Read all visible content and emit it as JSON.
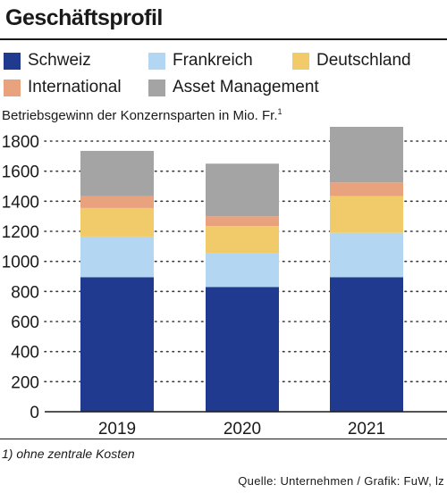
{
  "title": "Geschäftsprofil",
  "ylabel_text": "Betriebsgewinn der Konzernsparten in Mio. Fr.",
  "ylabel_sup": "1",
  "footnote": "1) ohne zentrale Kosten",
  "source": "Quelle: Unternehmen / Grafik: FuW, lz",
  "legend": [
    {
      "label": "Schweiz",
      "color": "#1f3a8f"
    },
    {
      "label": "Frankreich",
      "color": "#b3d7f2"
    },
    {
      "label": "Deutschland",
      "color": "#f1cb69"
    },
    {
      "label": "International",
      "color": "#e8a27d"
    },
    {
      "label": "Asset Management",
      "color": "#a4a4a4"
    }
  ],
  "chart_data": {
    "type": "bar",
    "stacked": true,
    "categories": [
      "2019",
      "2020",
      "2021"
    ],
    "ylim": [
      0,
      1800
    ],
    "yticks": [
      0,
      200,
      400,
      600,
      800,
      1000,
      1200,
      1400,
      1600,
      1800
    ],
    "grid": "dotted horizontal",
    "series": [
      {
        "name": "Schweiz",
        "color": "#1f3a8f",
        "values": [
          895,
          830,
          895
        ]
      },
      {
        "name": "Frankreich",
        "color": "#b3d7f2",
        "values": [
          270,
          225,
          295
        ]
      },
      {
        "name": "Deutschland",
        "color": "#f1cb69",
        "values": [
          190,
          180,
          245
        ]
      },
      {
        "name": "International",
        "color": "#e8a27d",
        "values": [
          80,
          65,
          90
        ]
      },
      {
        "name": "Asset Management",
        "color": "#a4a4a4",
        "values": [
          300,
          350,
          370
        ]
      }
    ]
  }
}
